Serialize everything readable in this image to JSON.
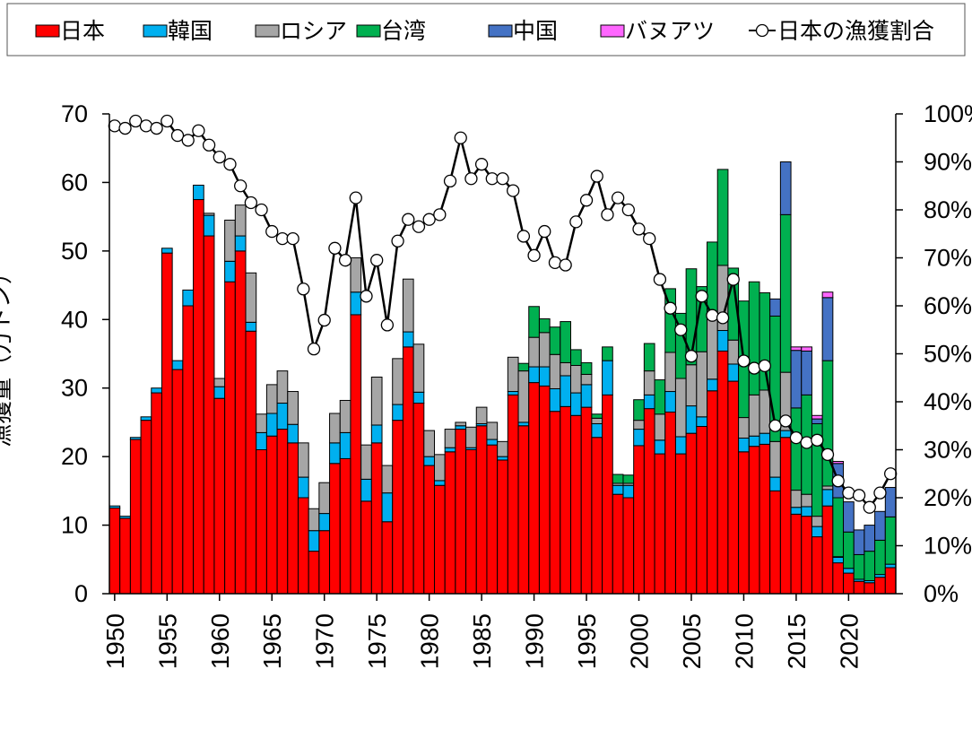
{
  "chart_data": {
    "type": "bar",
    "stacked": true,
    "y_label": "漁獲量（万トン）",
    "x": [
      1950,
      1951,
      1952,
      1953,
      1954,
      1955,
      1956,
      1957,
      1958,
      1959,
      1960,
      1961,
      1962,
      1963,
      1964,
      1965,
      1966,
      1967,
      1968,
      1969,
      1970,
      1971,
      1972,
      1973,
      1974,
      1975,
      1976,
      1977,
      1978,
      1979,
      1980,
      1981,
      1982,
      1983,
      1984,
      1985,
      1986,
      1987,
      1988,
      1989,
      1990,
      1991,
      1992,
      1993,
      1994,
      1995,
      1996,
      1997,
      1998,
      1999,
      2000,
      2001,
      2002,
      2003,
      2004,
      2005,
      2006,
      2007,
      2008,
      2009,
      2010,
      2011,
      2012,
      2013,
      2014,
      2015,
      2016,
      2017,
      2018,
      2019,
      2020,
      2021,
      2022,
      2023,
      2024
    ],
    "xlim": [
      1949.5,
      2024.5
    ],
    "xticks": [
      1950,
      1955,
      1960,
      1965,
      1970,
      1975,
      1980,
      1985,
      1990,
      1995,
      2000,
      2005,
      2010,
      2015,
      2020
    ],
    "ylim": [
      0,
      70
    ],
    "yticks": [
      0,
      10,
      20,
      30,
      40,
      50,
      60,
      70
    ],
    "y2lim": [
      0,
      100
    ],
    "y2ticks": [
      {
        "value": 0,
        "label": "0%"
      },
      {
        "value": 10,
        "label": "10%"
      },
      {
        "value": 20,
        "label": "20%"
      },
      {
        "value": 30,
        "label": "30%"
      },
      {
        "value": 40,
        "label": "40%"
      },
      {
        "value": 50,
        "label": "50%"
      },
      {
        "value": 60,
        "label": "60%"
      },
      {
        "value": 70,
        "label": "70%"
      },
      {
        "value": 80,
        "label": "80%"
      },
      {
        "value": 90,
        "label": "90%"
      },
      {
        "value": 100,
        "label": "100%"
      }
    ],
    "legend": "top",
    "series": [
      {
        "name": "日本",
        "color": "#ff0000",
        "values": [
          12.5,
          11,
          22.5,
          25.3,
          29.3,
          49.7,
          32.7,
          42,
          57.5,
          52.2,
          28.5,
          45.5,
          50,
          38.3,
          21,
          23,
          24,
          22,
          14,
          6.2,
          9.2,
          19,
          19.7,
          40.7,
          13.5,
          22,
          10.5,
          25.3,
          36,
          27.8,
          18.7,
          15.8,
          20.7,
          24,
          21,
          24.5,
          21.7,
          19.5,
          29,
          24.5,
          30.8,
          30.3,
          26.6,
          27.3,
          26,
          27.2,
          22.8,
          29,
          14.5,
          14,
          21.6,
          27,
          20.4,
          26.5,
          20.4,
          23.4,
          24.4,
          29.6,
          35.4,
          31,
          20.7,
          21.5,
          21.8,
          15,
          22.8,
          11.6,
          11.3,
          8.3,
          12.8,
          4.5,
          3,
          1.8,
          1.6,
          2.4,
          3.8
        ]
      },
      {
        "name": "韓国",
        "color": "#00b0f0",
        "values": [
          0.3,
          0.3,
          0.3,
          0.5,
          0.7,
          0.7,
          1.3,
          2.3,
          2.1,
          3,
          1.7,
          3,
          2.2,
          1.3,
          2.5,
          3.3,
          3.8,
          2.7,
          3,
          3,
          2.5,
          3,
          3.8,
          3.3,
          3.2,
          2.6,
          4.2,
          2.3,
          2.2,
          1.6,
          1.3,
          0.7,
          0.6,
          0.5,
          0.3,
          0.3,
          0.8,
          0.5,
          0.5,
          0.5,
          2.3,
          2.8,
          3.3,
          4.5,
          3.3,
          3.3,
          2,
          5,
          1.3,
          1.8,
          2.4,
          2,
          2,
          3,
          2.5,
          4,
          1.4,
          1.7,
          3,
          2.5,
          2,
          1.5,
          1.6,
          2,
          1,
          1,
          1.4,
          1.5,
          2.4,
          0.8,
          0.7,
          0.3,
          0.3,
          0.4,
          0.5
        ]
      },
      {
        "name": "ロシア",
        "color": "#a6a6a6",
        "values": [
          0,
          0,
          0,
          0,
          0,
          0,
          0,
          0,
          0,
          0.3,
          1.2,
          6,
          4.5,
          7.2,
          2.7,
          4.2,
          4.7,
          4.8,
          5,
          3.2,
          4.5,
          4.3,
          4.7,
          5,
          5,
          7,
          4,
          6.7,
          7.7,
          7,
          3.8,
          3.8,
          2.7,
          0.5,
          3,
          2.4,
          2.5,
          2.2,
          5,
          7.5,
          4.3,
          5,
          5,
          1.9,
          4,
          1.5,
          0.8,
          0,
          0.3,
          0.3,
          1.3,
          3.5,
          3.8,
          5.7,
          8.5,
          6,
          9.5,
          9,
          9.5,
          3.5,
          3,
          6,
          6.3,
          5.2,
          8.5,
          2.5,
          1.8,
          1.5,
          0.5,
          0.1,
          0,
          0,
          0,
          0,
          0
        ]
      },
      {
        "name": "台湾",
        "color": "#00b050",
        "values": [
          0,
          0,
          0,
          0,
          0,
          0,
          0,
          0,
          0,
          0,
          0,
          0,
          0,
          0,
          0,
          0,
          0,
          0,
          0,
          0,
          0,
          0,
          0,
          0,
          0,
          0,
          0,
          0,
          0,
          0,
          0,
          0,
          0,
          0,
          0,
          0,
          0,
          0,
          0,
          1.1,
          4.5,
          2,
          4,
          6,
          2.3,
          1.7,
          0.6,
          2,
          1.3,
          1.2,
          3,
          4,
          5,
          9.3,
          9.5,
          14,
          9.5,
          11,
          14,
          10.5,
          17,
          16.5,
          14.2,
          18.3,
          23,
          12,
          14.5,
          13.5,
          18.3,
          8.6,
          5.3,
          3.6,
          4.3,
          5,
          6.9
        ]
      },
      {
        "name": "中国",
        "color": "#4472c4",
        "values": [
          0,
          0,
          0,
          0,
          0,
          0,
          0,
          0,
          0,
          0,
          0,
          0,
          0,
          0,
          0,
          0,
          0,
          0,
          0,
          0,
          0,
          0,
          0,
          0,
          0,
          0,
          0,
          0,
          0,
          0,
          0,
          0,
          0,
          0,
          0,
          0,
          0,
          0,
          0,
          0,
          0,
          0,
          0,
          0,
          0,
          0,
          0,
          0,
          0,
          0,
          0,
          0,
          0,
          0,
          0,
          0,
          0,
          0,
          0,
          0,
          0,
          0,
          0,
          2.5,
          7.7,
          8.4,
          6.4,
          0.7,
          9.2,
          5,
          4.4,
          3.6,
          3.8,
          4.2,
          4.3
        ]
      },
      {
        "name": "バヌアツ",
        "color": "#ff66ff",
        "values": [
          0,
          0,
          0,
          0,
          0,
          0,
          0,
          0,
          0,
          0,
          0,
          0,
          0,
          0,
          0,
          0,
          0,
          0,
          0,
          0,
          0,
          0,
          0,
          0,
          0,
          0,
          0,
          0,
          0,
          0,
          0,
          0,
          0,
          0,
          0,
          0,
          0,
          0,
          0,
          0,
          0,
          0,
          0,
          0,
          0,
          0,
          0,
          0,
          0,
          0,
          0,
          0,
          0,
          0,
          0,
          0,
          0,
          0,
          0,
          0,
          0,
          0,
          0,
          0,
          0,
          0.5,
          0.6,
          0.5,
          0.8,
          0.3,
          0,
          0,
          0,
          0,
          0
        ]
      },
      {
        "name": "日本の漁獲割合",
        "type": "line",
        "axis": "y2",
        "color": "#000000",
        "values": [
          97.5,
          97,
          98.5,
          97.5,
          97,
          98.5,
          95.5,
          94.5,
          96.5,
          93.5,
          91,
          89.5,
          85,
          81.5,
          80,
          75.5,
          74,
          74,
          63.5,
          51,
          57,
          72,
          69.5,
          82.5,
          62,
          69.5,
          56,
          73.5,
          78,
          76.5,
          78,
          79,
          86,
          95,
          86.5,
          89.5,
          86.5,
          86.5,
          84,
          74.5,
          70.5,
          75.5,
          69,
          68.5,
          77.5,
          82,
          87,
          79,
          82.5,
          80,
          76,
          74,
          65.5,
          59.5,
          55,
          49.5,
          62,
          58,
          57.5,
          65.5,
          48.5,
          47,
          47.5,
          35,
          36,
          32.5,
          31.5,
          32,
          29,
          23.5,
          21,
          20.5,
          18,
          21,
          25
        ]
      }
    ]
  }
}
